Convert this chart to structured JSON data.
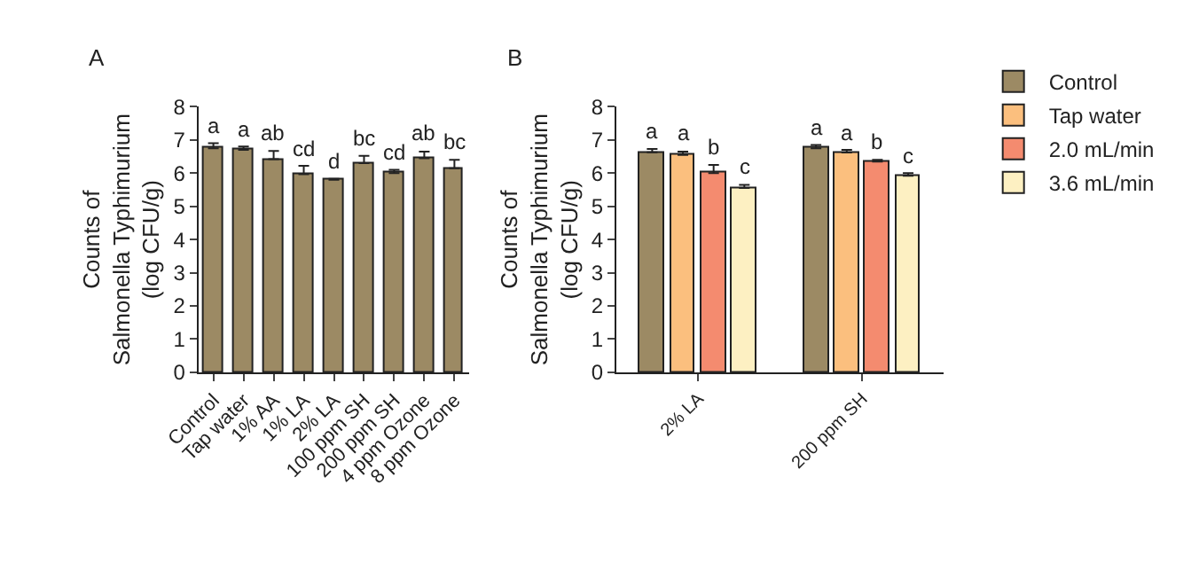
{
  "chart_data": [
    {
      "type": "bar",
      "title": "A",
      "ylabel": "Counts of Salmonella Typhimurium (log CFU/g)",
      "categories": [
        "Control",
        "Tap water",
        "1% AA",
        "1% LA",
        "2% LA",
        "100 ppm SH",
        "200 ppm SH",
        "4 ppm Ozone",
        "8 ppm Ozone"
      ],
      "series": [
        {
          "color": "#9c8a64",
          "values": [
            6.75,
            6.7,
            6.42,
            5.97,
            5.8,
            6.3,
            6.0,
            6.45,
            6.15
          ],
          "errors": [
            [
              6.75,
              6.9
            ],
            [
              6.7,
              6.8
            ],
            [
              6.42,
              6.67
            ],
            [
              5.97,
              6.22
            ],
            [
              5.8,
              5.83
            ],
            [
              6.3,
              6.52
            ],
            [
              6.0,
              6.1
            ],
            [
              6.45,
              6.65
            ],
            [
              6.15,
              6.4
            ]
          ],
          "value_labels": [
            "a",
            "a",
            "ab",
            "cd",
            "d",
            "bc",
            "cd",
            "ab",
            "bc"
          ]
        }
      ],
      "ylim": [
        0,
        8
      ],
      "yticks": [
        0,
        1,
        2,
        3,
        4,
        5,
        6,
        7,
        8
      ],
      "legend": false
    },
    {
      "type": "bar",
      "title": "B",
      "ylabel": "Counts of Salmonella Typhimurium (log CFU/g)",
      "categories": [
        "2% LA",
        "200 ppm SH"
      ],
      "series": [
        {
          "name": "Control",
          "color": "#9c8a64",
          "values": [
            6.63,
            6.75
          ],
          "errors": [
            [
              6.63,
              6.73
            ],
            [
              6.75,
              6.85
            ]
          ],
          "value_labels": [
            "a",
            "a"
          ]
        },
        {
          "name": "Tap water",
          "color": "#fbbf7e",
          "values": [
            6.55,
            6.62
          ],
          "errors": [
            [
              6.55,
              6.65
            ],
            [
              6.62,
              6.7
            ]
          ],
          "value_labels": [
            "a",
            "a"
          ]
        },
        {
          "name": "2.0 mL/min",
          "color": "#f48b6f",
          "values": [
            6.0,
            6.35
          ],
          "errors": [
            [
              6.0,
              6.25
            ],
            [
              6.35,
              6.4
            ]
          ],
          "value_labels": [
            "b",
            "b"
          ]
        },
        {
          "name": "3.6 mL/min",
          "color": "#fdf0c2",
          "values": [
            5.55,
            5.92
          ],
          "errors": [
            [
              5.55,
              5.65
            ],
            [
              5.92,
              6.0
            ]
          ],
          "value_labels": [
            "c",
            "c"
          ]
        }
      ],
      "ylim": [
        0,
        8
      ],
      "yticks": [
        0,
        1,
        2,
        3,
        4,
        5,
        6,
        7,
        8
      ],
      "legend": "right"
    }
  ]
}
